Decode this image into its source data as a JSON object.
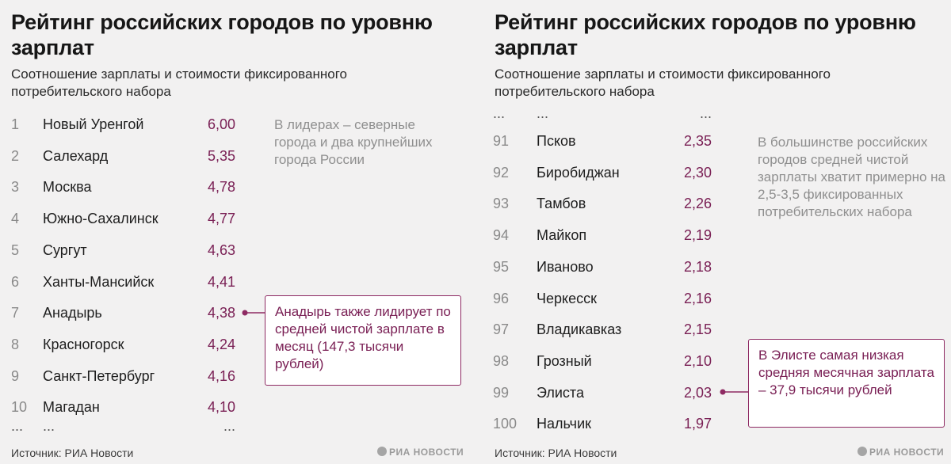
{
  "chart_data": [
    {
      "type": "table",
      "title": "Рейтинг российских городов по уровню зарплат",
      "subtitle": "Соотношение зарплаты и стоимости фиксированного потребительского набора",
      "rows": [
        {
          "rank": "1",
          "city": "Новый Уренгой",
          "value": "6,00"
        },
        {
          "rank": "2",
          "city": "Салехард",
          "value": "5,35"
        },
        {
          "rank": "3",
          "city": "Москва",
          "value": "4,78"
        },
        {
          "rank": "4",
          "city": "Южно-Сахалинск",
          "value": "4,77"
        },
        {
          "rank": "5",
          "city": "Сургут",
          "value": "4,63"
        },
        {
          "rank": "6",
          "city": "Ханты-Мансийск",
          "value": "4,41"
        },
        {
          "rank": "7",
          "city": "Анадырь",
          "value": "4,38"
        },
        {
          "rank": "8",
          "city": "Красногорск",
          "value": "4,24"
        },
        {
          "rank": "9",
          "city": "Санкт-Петербург",
          "value": "4,16"
        },
        {
          "rank": "10",
          "city": "Магадан",
          "value": "4,10"
        }
      ],
      "ellipsis": {
        "rank": "...",
        "city": "...",
        "value": "..."
      },
      "note": "В лидерах – северные города и два крупнейших города России",
      "callout": "Анадырь также лидирует по средней чистой зарплате в месяц (147,3 тысячи рублей)",
      "source": "Источник: РИА Новости",
      "logo": "РИА НОВОСТИ"
    },
    {
      "type": "table",
      "title": "Рейтинг российских городов по уровню зарплат",
      "subtitle": "Соотношение зарплаты и стоимости фиксированного потребительского набора",
      "ellipsis": {
        "rank": "...",
        "city": "...",
        "value": "..."
      },
      "rows": [
        {
          "rank": "91",
          "city": "Псков",
          "value": "2,35"
        },
        {
          "rank": "92",
          "city": "Биробиджан",
          "value": "2,30"
        },
        {
          "rank": "93",
          "city": "Тамбов",
          "value": "2,26"
        },
        {
          "rank": "94",
          "city": "Майкоп",
          "value": "2,19"
        },
        {
          "rank": "95",
          "city": "Иваново",
          "value": "2,18"
        },
        {
          "rank": "96",
          "city": "Черкесск",
          "value": "2,16"
        },
        {
          "rank": "97",
          "city": "Владикавказ",
          "value": "2,15"
        },
        {
          "rank": "98",
          "city": "Грозный",
          "value": "2,10"
        },
        {
          "rank": "99",
          "city": "Элиста",
          "value": "2,03"
        },
        {
          "rank": "100",
          "city": "Нальчик",
          "value": "1,97"
        }
      ],
      "note": "В большинстве российских городов средней чистой зарплаты хватит примерно на 2,5-3,5 фиксированных потребительских набора",
      "callout": "В Элисте самая низкая средняя месячная зарплата – 37,9 тысячи рублей",
      "source": "Источник: РИА Новости",
      "logo": "РИА НОВОСТИ"
    }
  ],
  "colors": {
    "accent": "#7a2055",
    "background": "#f2f1f1",
    "note": "#8f8f8f"
  }
}
